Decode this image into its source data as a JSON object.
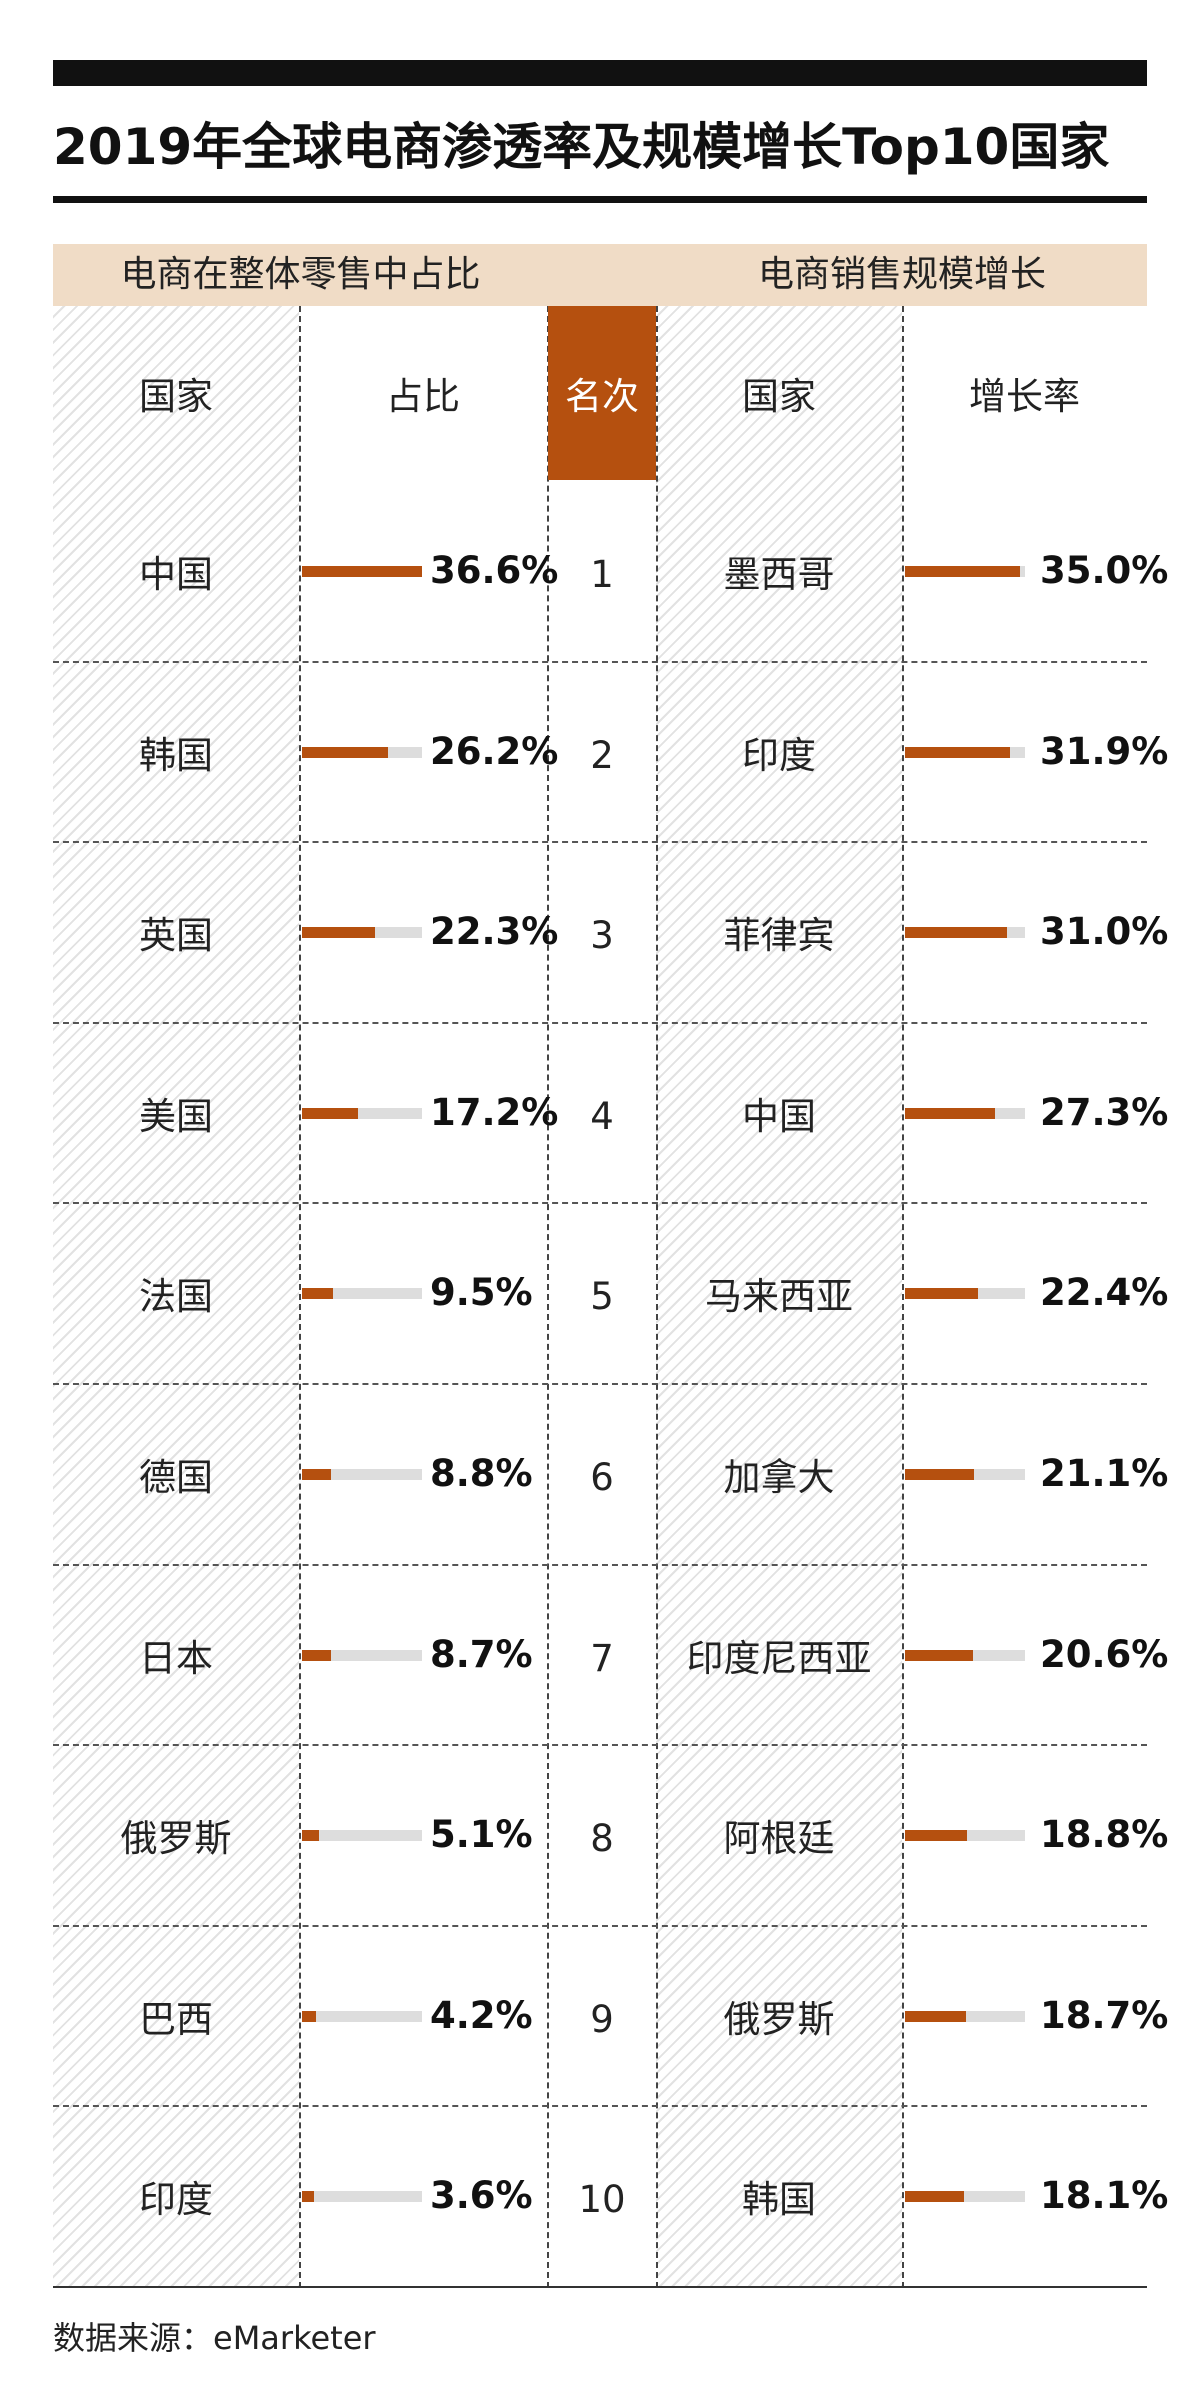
{
  "title": "2019年全球电商渗透率及规模增长Top10国家",
  "sections": {
    "left": "电商在整体零售中占比",
    "right": "电商销售规模增长"
  },
  "headers": {
    "country_left": "国家",
    "share": "占比",
    "rank": "名次",
    "country_right": "国家",
    "growth": "增长率"
  },
  "colors": {
    "accent": "#b5500f",
    "band": "#f0dcc6",
    "track": "#dddddd"
  },
  "chart_data": [
    {
      "type": "bar",
      "title": "电商在整体零售中占比",
      "ylabel": "占比",
      "unit": "%",
      "ylim": [
        0,
        36.6
      ],
      "categories": [
        "中国",
        "韩国",
        "英国",
        "美国",
        "法国",
        "德国",
        "日本",
        "俄罗斯",
        "巴西",
        "印度"
      ],
      "values": [
        36.6,
        26.2,
        22.3,
        17.2,
        9.5,
        8.8,
        8.7,
        5.1,
        4.2,
        3.6
      ],
      "labels": [
        "36.6%",
        "26.2%",
        "22.3%",
        "17.2%",
        "9.5%",
        "8.8%",
        "8.7%",
        "5.1%",
        "4.2%",
        "3.6%"
      ]
    },
    {
      "type": "bar",
      "title": "电商销售规模增长",
      "ylabel": "增长率",
      "unit": "%",
      "ylim": [
        0,
        36.6
      ],
      "categories": [
        "墨西哥",
        "印度",
        "菲律宾",
        "中国",
        "马来西亚",
        "加拿大",
        "印度尼西亚",
        "阿根廷",
        "俄罗斯",
        "韩国"
      ],
      "values": [
        35.0,
        31.9,
        31.0,
        27.3,
        22.4,
        21.1,
        20.6,
        18.8,
        18.7,
        18.1
      ],
      "labels": [
        "35.0%",
        "31.9%",
        "31.0%",
        "27.3%",
        "22.4%",
        "21.1%",
        "20.6%",
        "18.8%",
        "18.7%",
        "18.1%"
      ]
    }
  ],
  "ranks": [
    "1",
    "2",
    "3",
    "4",
    "5",
    "6",
    "7",
    "8",
    "9",
    "10"
  ],
  "source": "数据来源：eMarketer"
}
